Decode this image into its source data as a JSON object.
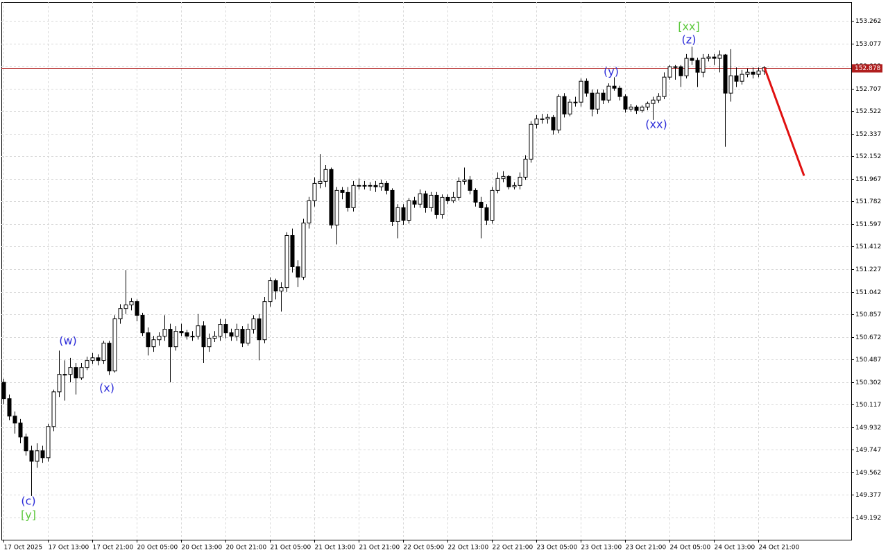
{
  "chart_data": {
    "type": "candlestick",
    "categories": [
      "17 Oct 2025",
      null,
      null,
      null,
      null,
      null,
      null,
      null,
      "17 Oct 13:00",
      null,
      null,
      null,
      null,
      null,
      null,
      null,
      "17 Oct 21:00",
      null,
      null,
      null,
      null,
      null,
      null,
      null,
      "20 Oct 05:00",
      null,
      null,
      null,
      null,
      null,
      null,
      null,
      "20 Oct 13:00",
      null,
      null,
      null,
      null,
      null,
      null,
      null,
      "20 Oct 21:00",
      null,
      null,
      null,
      null,
      null,
      null,
      null,
      "21 Oct 05:00",
      null,
      null,
      null,
      null,
      null,
      null,
      null,
      "21 Oct 13:00",
      null,
      null,
      null,
      null,
      null,
      null,
      null,
      "21 Oct 21:00",
      null,
      null,
      null,
      null,
      null,
      null,
      null,
      "22 Oct 05:00",
      null,
      null,
      null,
      null,
      null,
      null,
      null,
      "22 Oct 13:00",
      null,
      null,
      null,
      null,
      null,
      null,
      null,
      "22 Oct 21:00",
      null,
      null,
      null,
      null,
      null,
      null,
      null,
      "23 Oct 05:00",
      null,
      null,
      null,
      null,
      null,
      null,
      null,
      "23 Oct 13:00",
      null,
      null,
      null,
      null,
      null,
      null,
      null,
      "23 Oct 21:00",
      null,
      null,
      null,
      null,
      null,
      null,
      null,
      "24 Oct 05:00",
      null,
      null,
      null,
      null,
      null,
      null,
      null,
      "24 Oct 13:00",
      null,
      null,
      null,
      null,
      null,
      null,
      null,
      "24 Oct 21:00",
      null
    ],
    "ohlc": [
      [
        150.3,
        150.33,
        150.12,
        150.166
      ],
      [
        150.166,
        150.2,
        149.99,
        150.023
      ],
      [
        150.023,
        150.06,
        149.88,
        149.966
      ],
      [
        149.966,
        150.0,
        149.8,
        149.852
      ],
      [
        149.852,
        149.88,
        149.7,
        149.739
      ],
      [
        149.739,
        149.78,
        149.369,
        149.653
      ],
      [
        149.653,
        149.8,
        149.6,
        149.739
      ],
      [
        149.739,
        149.78,
        149.64,
        149.682
      ],
      [
        149.682,
        149.96,
        149.65,
        149.938
      ],
      [
        149.938,
        150.24,
        149.9,
        150.222
      ],
      [
        150.222,
        150.56,
        150.18,
        150.365
      ],
      [
        150.365,
        150.48,
        150.15,
        150.365
      ],
      [
        150.365,
        150.5,
        150.3,
        150.422
      ],
      [
        150.422,
        150.46,
        150.2,
        150.336
      ],
      [
        150.336,
        150.46,
        150.32,
        150.422
      ],
      [
        150.422,
        150.51,
        150.4,
        150.479
      ],
      [
        150.479,
        150.54,
        150.45,
        150.501
      ],
      [
        150.501,
        150.53,
        150.44,
        150.479
      ],
      [
        150.479,
        150.64,
        150.45,
        150.621
      ],
      [
        150.621,
        150.64,
        150.36,
        150.393
      ],
      [
        150.393,
        150.85,
        150.38,
        150.82
      ],
      [
        150.82,
        150.94,
        150.78,
        150.905
      ],
      [
        150.905,
        151.22,
        150.86,
        150.934
      ],
      [
        150.934,
        150.99,
        150.89,
        150.962
      ],
      [
        150.962,
        150.98,
        150.8,
        150.849
      ],
      [
        150.849,
        150.87,
        150.68,
        150.706
      ],
      [
        150.706,
        150.75,
        150.52,
        150.592
      ],
      [
        150.592,
        150.68,
        150.55,
        150.649
      ],
      [
        150.649,
        150.71,
        150.6,
        150.678
      ],
      [
        150.678,
        150.85,
        150.64,
        150.735
      ],
      [
        150.735,
        150.78,
        150.3,
        150.592
      ],
      [
        150.592,
        150.76,
        150.56,
        150.718
      ],
      [
        150.718,
        150.78,
        150.68,
        150.706
      ],
      [
        150.706,
        150.73,
        150.65,
        150.678
      ],
      [
        150.678,
        150.72,
        150.64,
        150.678
      ],
      [
        150.678,
        150.86,
        150.65,
        150.763
      ],
      [
        150.763,
        150.8,
        150.46,
        150.592
      ],
      [
        150.592,
        150.7,
        150.55,
        150.661
      ],
      [
        150.661,
        150.72,
        150.63,
        150.678
      ],
      [
        150.678,
        150.82,
        150.64,
        150.775
      ],
      [
        150.775,
        150.82,
        150.66,
        150.706
      ],
      [
        150.706,
        150.74,
        150.64,
        150.678
      ],
      [
        150.678,
        150.78,
        150.64,
        150.735
      ],
      [
        150.735,
        150.76,
        150.59,
        150.621
      ],
      [
        150.621,
        150.78,
        150.6,
        150.735
      ],
      [
        150.735,
        150.85,
        150.7,
        150.82
      ],
      [
        150.82,
        150.86,
        150.48,
        150.649
      ],
      [
        150.649,
        151.0,
        150.62,
        150.962
      ],
      [
        150.962,
        151.16,
        150.92,
        151.133
      ],
      [
        151.133,
        151.15,
        150.98,
        151.048
      ],
      [
        151.048,
        151.12,
        150.88,
        151.076
      ],
      [
        151.076,
        151.53,
        151.04,
        151.503
      ],
      [
        151.503,
        151.56,
        151.2,
        151.247
      ],
      [
        151.247,
        151.3,
        151.08,
        151.162
      ],
      [
        151.162,
        151.64,
        151.14,
        151.606
      ],
      [
        151.606,
        151.82,
        151.56,
        151.788
      ],
      [
        151.788,
        151.98,
        151.74,
        151.93
      ],
      [
        151.93,
        152.17,
        151.89,
        151.947
      ],
      [
        151.947,
        152.08,
        151.9,
        152.044
      ],
      [
        152.044,
        152.06,
        151.56,
        151.589
      ],
      [
        151.589,
        151.9,
        151.43,
        151.873
      ],
      [
        151.873,
        151.9,
        151.8,
        151.856
      ],
      [
        151.856,
        151.9,
        151.7,
        151.731
      ],
      [
        151.731,
        151.95,
        151.7,
        151.913
      ],
      [
        151.913,
        151.97,
        151.88,
        151.913
      ],
      [
        151.913,
        151.95,
        151.88,
        151.913
      ],
      [
        151.913,
        151.94,
        151.87,
        151.913
      ],
      [
        151.913,
        151.95,
        151.86,
        151.902
      ],
      [
        151.902,
        151.96,
        151.87,
        151.93
      ],
      [
        151.93,
        151.95,
        151.84,
        151.873
      ],
      [
        151.873,
        151.89,
        151.58,
        151.617
      ],
      [
        151.617,
        151.76,
        151.48,
        151.731
      ],
      [
        151.731,
        151.76,
        151.59,
        151.628
      ],
      [
        151.628,
        151.81,
        151.6,
        151.788
      ],
      [
        151.788,
        151.82,
        151.73,
        151.76
      ],
      [
        151.76,
        151.88,
        151.73,
        151.845
      ],
      [
        151.845,
        151.87,
        151.69,
        151.731
      ],
      [
        151.731,
        151.86,
        151.7,
        151.833
      ],
      [
        151.833,
        151.86,
        151.64,
        151.674
      ],
      [
        151.674,
        151.84,
        151.64,
        151.816
      ],
      [
        151.816,
        151.84,
        151.76,
        151.788
      ],
      [
        151.788,
        151.86,
        151.77,
        151.816
      ],
      [
        151.816,
        151.98,
        151.79,
        151.947
      ],
      [
        151.947,
        152.06,
        151.92,
        151.959
      ],
      [
        151.959,
        151.99,
        151.84,
        151.873
      ],
      [
        151.873,
        151.89,
        151.74,
        151.776
      ],
      [
        151.776,
        151.82,
        151.48,
        151.731
      ],
      [
        151.731,
        151.76,
        151.59,
        151.628
      ],
      [
        151.628,
        151.9,
        151.6,
        151.873
      ],
      [
        151.873,
        152.02,
        151.85,
        151.97
      ],
      [
        151.97,
        152.03,
        151.94,
        151.987
      ],
      [
        151.987,
        152.0,
        151.88,
        151.902
      ],
      [
        151.902,
        151.94,
        151.88,
        151.913
      ],
      [
        151.913,
        152.02,
        151.88,
        151.981
      ],
      [
        151.981,
        152.16,
        151.96,
        152.129
      ],
      [
        152.129,
        152.44,
        152.1,
        152.414
      ],
      [
        152.414,
        152.49,
        152.38,
        152.459
      ],
      [
        152.459,
        152.5,
        152.42,
        152.459
      ],
      [
        152.459,
        152.5,
        152.42,
        152.471
      ],
      [
        152.471,
        152.49,
        152.33,
        152.368
      ],
      [
        152.368,
        152.66,
        152.34,
        152.642
      ],
      [
        152.642,
        152.67,
        152.47,
        152.499
      ],
      [
        152.499,
        152.62,
        152.48,
        152.596
      ],
      [
        152.596,
        152.64,
        152.56,
        152.596
      ],
      [
        152.596,
        152.79,
        152.56,
        152.767
      ],
      [
        152.767,
        152.79,
        152.64,
        152.67
      ],
      [
        152.67,
        152.7,
        152.48,
        152.539
      ],
      [
        152.539,
        152.7,
        152.5,
        152.67
      ],
      [
        152.67,
        152.7,
        152.58,
        152.613
      ],
      [
        152.613,
        152.75,
        152.59,
        152.727
      ],
      [
        152.727,
        152.8,
        152.69,
        152.71
      ],
      [
        152.71,
        152.73,
        152.61,
        152.642
      ],
      [
        152.642,
        152.66,
        152.51,
        152.539
      ],
      [
        152.539,
        152.58,
        152.52,
        152.556
      ],
      [
        152.556,
        152.57,
        152.5,
        152.528
      ],
      [
        152.528,
        152.57,
        152.51,
        152.556
      ],
      [
        152.556,
        152.6,
        152.53,
        152.585
      ],
      [
        152.585,
        152.64,
        152.45,
        152.613
      ],
      [
        152.613,
        152.67,
        152.59,
        152.642
      ],
      [
        152.642,
        152.84,
        152.62,
        152.801
      ],
      [
        152.801,
        152.9,
        152.78,
        152.886
      ],
      [
        152.886,
        152.9,
        152.78,
        152.886
      ],
      [
        152.886,
        152.9,
        152.72,
        152.812
      ],
      [
        152.812,
        152.99,
        152.79,
        152.955
      ],
      [
        152.955,
        153.05,
        152.9,
        152.938
      ],
      [
        152.938,
        152.96,
        152.72,
        152.841
      ],
      [
        152.841,
        152.99,
        152.8,
        152.955
      ],
      [
        152.955,
        152.99,
        152.93,
        152.966
      ],
      [
        152.966,
        152.99,
        152.9,
        152.955
      ],
      [
        152.955,
        153.02,
        152.84,
        152.983
      ],
      [
        152.983,
        152.99,
        152.23,
        152.67
      ],
      [
        152.67,
        153.03,
        152.6,
        152.812
      ],
      [
        152.812,
        152.88,
        152.72,
        152.767
      ],
      [
        152.767,
        152.86,
        152.74,
        152.824
      ],
      [
        152.824,
        152.87,
        152.8,
        152.841
      ],
      [
        152.841,
        152.88,
        152.79,
        152.824
      ],
      [
        152.824,
        152.88,
        152.8,
        152.852
      ],
      [
        152.852,
        152.89,
        152.82,
        152.878
      ]
    ],
    "ylim": [
      149.01,
      153.416
    ],
    "yticks": [
      149.192,
      149.377,
      149.562,
      149.747,
      149.932,
      150.117,
      150.302,
      150.487,
      150.672,
      150.857,
      151.042,
      151.227,
      151.412,
      151.597,
      151.782,
      151.967,
      152.152,
      152.337,
      152.522,
      152.707,
      152.892,
      153.077,
      153.262
    ],
    "grid": true,
    "current_price": 152.878,
    "price_line_color": "#b01e1e",
    "forecast": [
      152.878,
      151.993
    ],
    "forecast_color": "#e01010",
    "annotations": [
      {
        "text": "(c)",
        "color": "#2a2ad8"
      },
      {
        "text": "[y]",
        "color": "#5cc83c"
      },
      {
        "text": "(w)",
        "color": "#2a2ad8"
      },
      {
        "text": "(x)",
        "color": "#2a2ad8"
      },
      {
        "text": "(y)",
        "color": "#2a2ad8"
      },
      {
        "text": "(xx)",
        "color": "#2a2ad8"
      },
      {
        "text": "(z)",
        "color": "#2a2ad8"
      },
      {
        "text": "[xx]",
        "color": "#5cc83c"
      }
    ]
  }
}
